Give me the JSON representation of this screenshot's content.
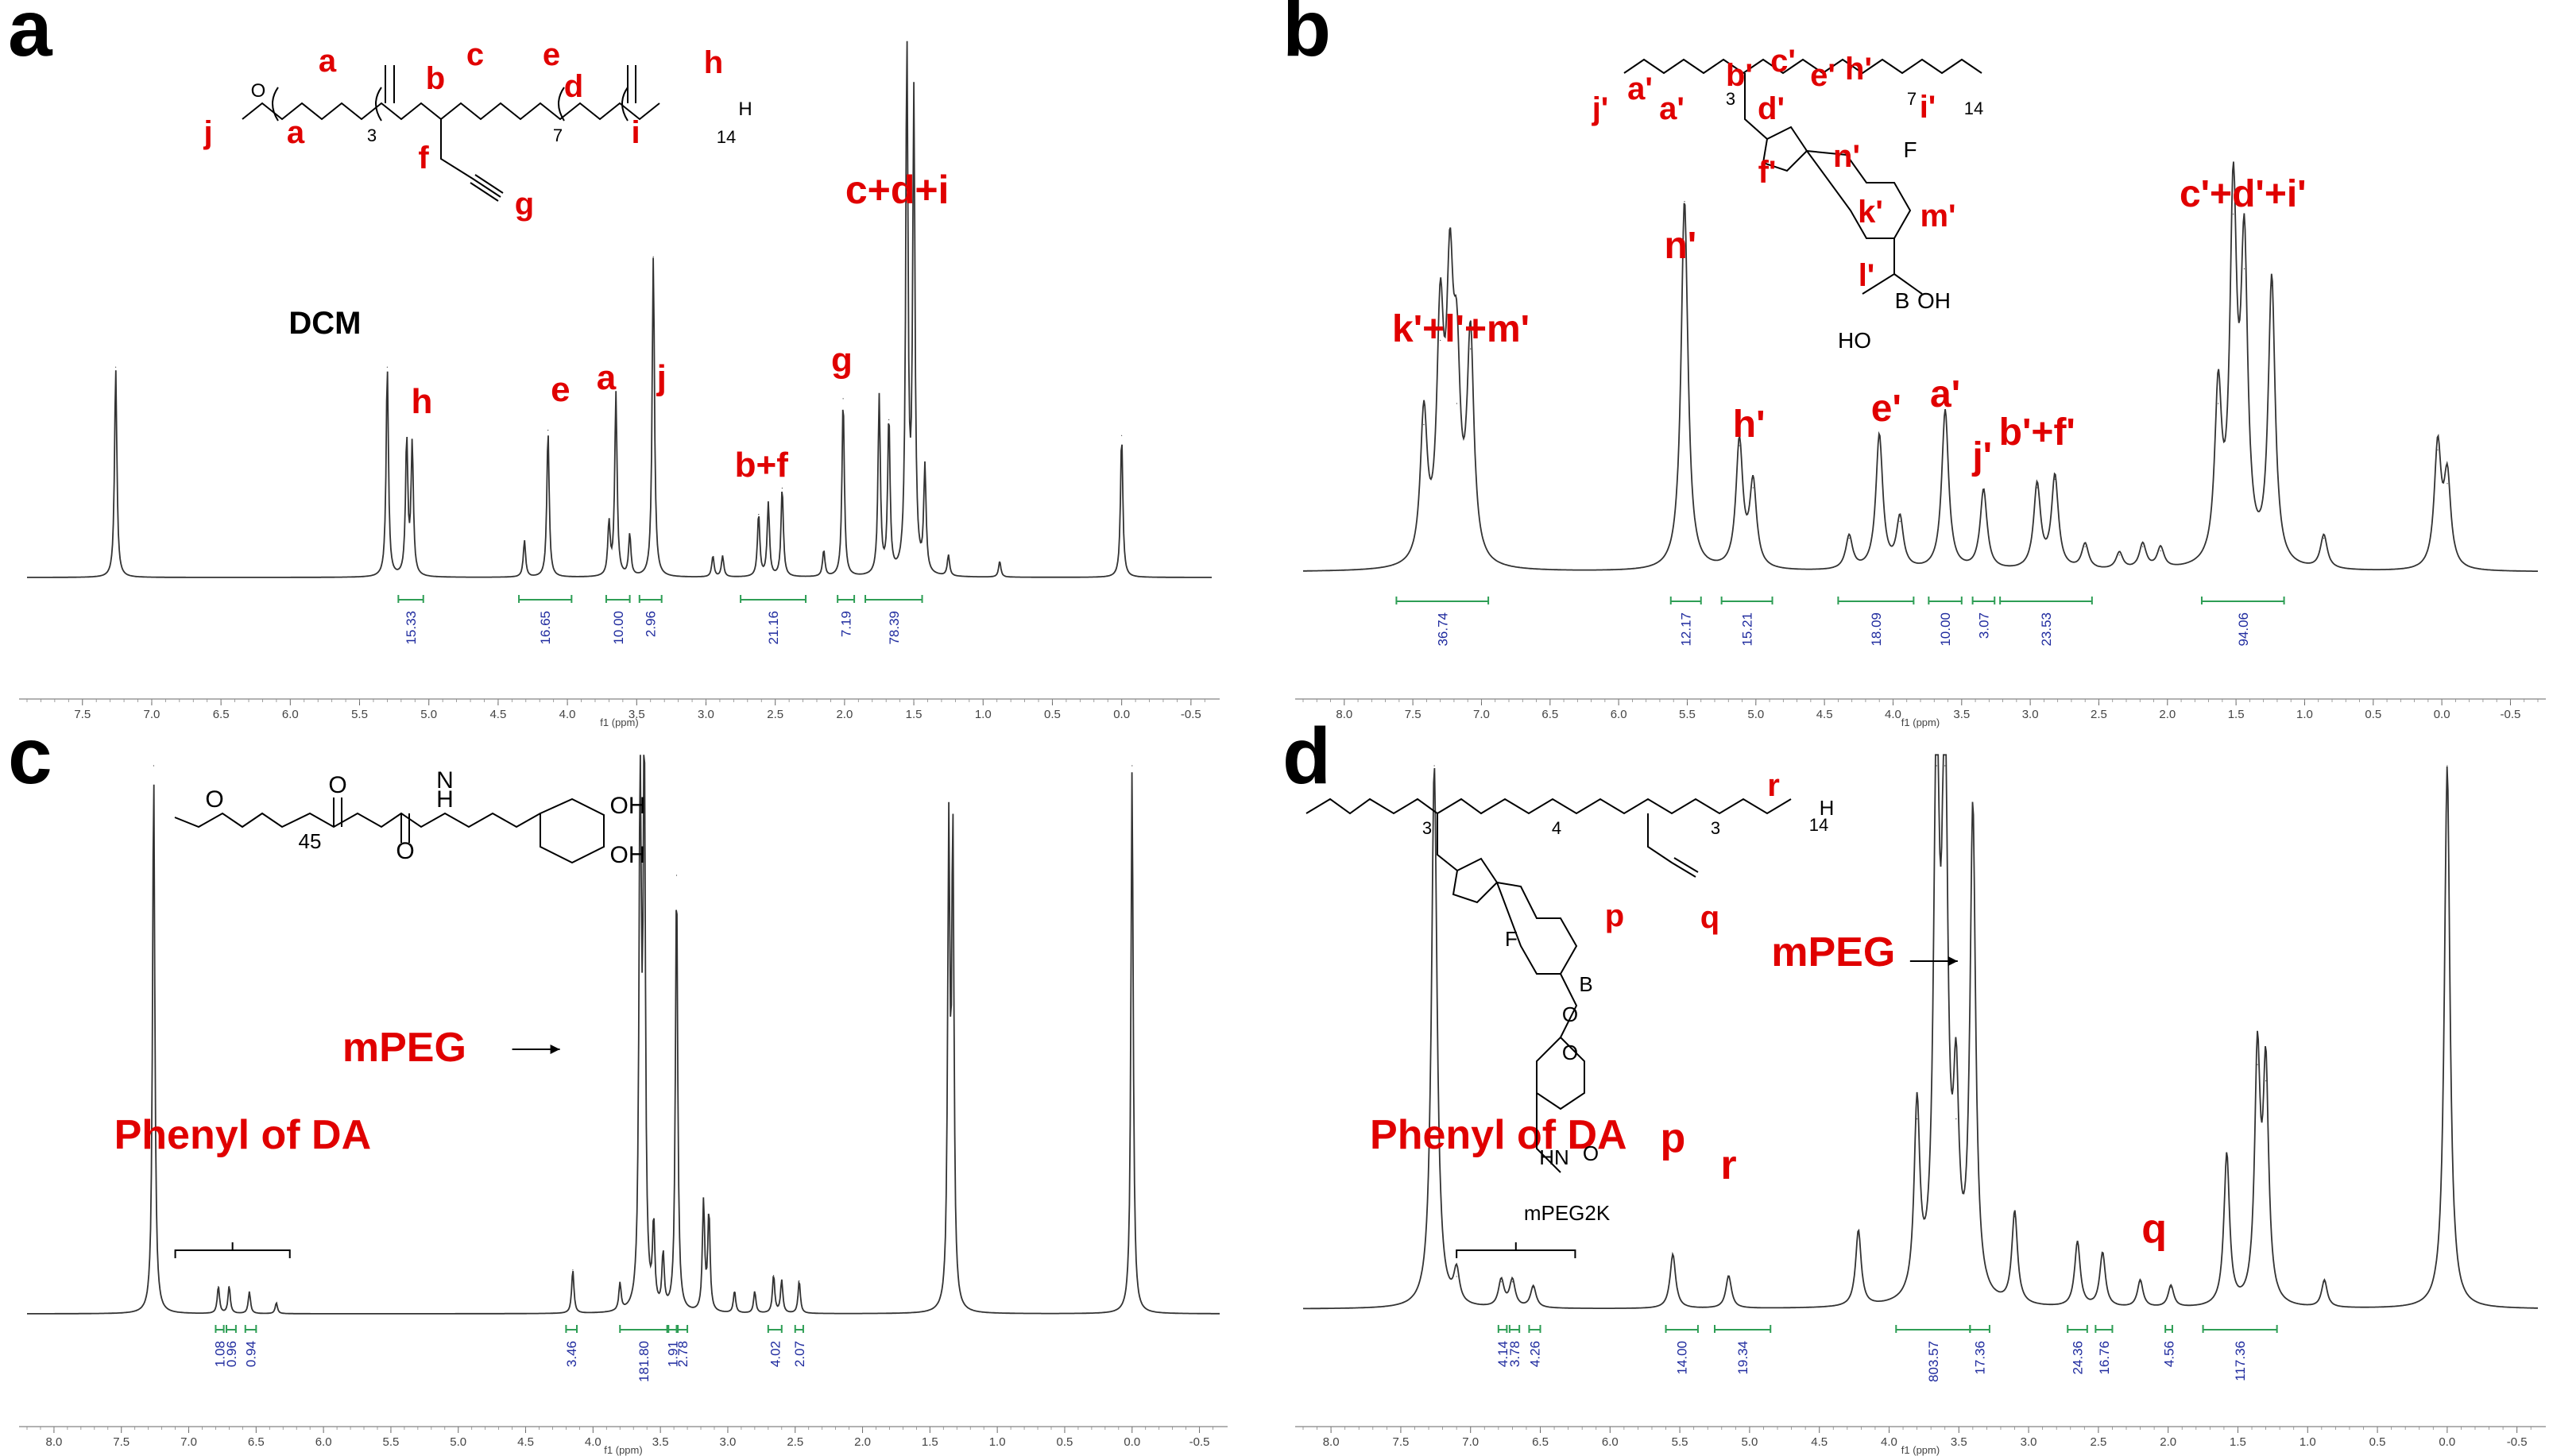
{
  "figure": {
    "panels": [
      {
        "letter": "a",
        "x_axis_label": "f1 (ppm)",
        "x_range": [
          7.9,
          -0.65
        ],
        "x_ticks": [
          "7.5",
          "7.0",
          "6.5",
          "6.0",
          "5.5",
          "5.0",
          "4.5",
          "4.0",
          "3.5",
          "3.0",
          "2.5",
          "2.0",
          "1.5",
          "1.0",
          "0.5",
          "0.0",
          "-0.5"
        ],
        "peak_labels": [
          {
            "text": "DCM",
            "color": "#000000"
          },
          {
            "text": "h",
            "color": "#e00000"
          },
          {
            "text": "e",
            "color": "#e00000"
          },
          {
            "text": "a",
            "color": "#e00000"
          },
          {
            "text": "j",
            "color": "#e00000"
          },
          {
            "text": "b+f",
            "color": "#e00000"
          },
          {
            "text": "g",
            "color": "#e00000"
          },
          {
            "text": "c+d+i",
            "color": "#e00000"
          }
        ],
        "structure_labels": [
          "j",
          "a",
          "a",
          "b",
          "c",
          "d",
          "e",
          "f",
          "g",
          "h",
          "i"
        ],
        "structure_subscripts": [
          "3",
          "7",
          "14"
        ],
        "integrals": [
          {
            "value": "15.33",
            "from": 5.22,
            "to": 5.04
          },
          {
            "value": "16.65",
            "from": 4.35,
            "to": 3.97
          },
          {
            "value": "10.00",
            "from": 3.72,
            "to": 3.55
          },
          {
            "value": "2.96",
            "from": 3.48,
            "to": 3.32
          },
          {
            "value": "21.16",
            "from": 2.75,
            "to": 2.28
          },
          {
            "value": "7.19",
            "from": 2.05,
            "to": 1.93
          },
          {
            "value": "78.39",
            "from": 1.85,
            "to": 1.44
          }
        ]
      },
      {
        "letter": "b",
        "x_axis_label": "f1 (ppm)",
        "x_range": [
          8.3,
          -0.7
        ],
        "x_ticks": [
          "8.0",
          "7.5",
          "7.0",
          "6.5",
          "6.0",
          "5.5",
          "5.0",
          "4.5",
          "4.0",
          "3.5",
          "3.0",
          "2.5",
          "2.0",
          "1.5",
          "1.0",
          "0.5",
          "0.0",
          "-0.5"
        ],
        "peak_labels": [
          {
            "text": "k'+l'+m'",
            "color": "#e00000"
          },
          {
            "text": "n'",
            "color": "#e00000"
          },
          {
            "text": "h'",
            "color": "#e00000"
          },
          {
            "text": "e'",
            "color": "#e00000"
          },
          {
            "text": "a'",
            "color": "#e00000"
          },
          {
            "text": "j'",
            "color": "#e00000"
          },
          {
            "text": "b'+f'",
            "color": "#e00000"
          },
          {
            "text": "c'+d'+i'",
            "color": "#e00000"
          }
        ],
        "structure_labels": [
          "j'",
          "a'",
          "a'",
          "b'",
          "c'",
          "d'",
          "e'",
          "f'",
          "h'",
          "i'",
          "n'",
          "k'",
          "l'",
          "m'"
        ],
        "structure_subscripts": [
          "3",
          "7",
          "14"
        ],
        "structure_atoms": [
          "F",
          "B",
          "OH",
          "HO"
        ],
        "integrals": [
          {
            "value": "36.74",
            "from": 7.62,
            "to": 6.95
          },
          {
            "value": "12.17",
            "from": 5.62,
            "to": 5.4
          },
          {
            "value": "15.21",
            "from": 5.25,
            "to": 4.88
          },
          {
            "value": "18.09",
            "from": 4.4,
            "to": 3.85
          },
          {
            "value": "10.00",
            "from": 3.74,
            "to": 3.5
          },
          {
            "value": "3.07",
            "from": 3.42,
            "to": 3.26
          },
          {
            "value": "23.53",
            "from": 3.22,
            "to": 2.55
          },
          {
            "value": "94.06",
            "from": 1.75,
            "to": 1.15
          }
        ]
      },
      {
        "letter": "c",
        "x_axis_label": "f1 (ppm)",
        "x_range": [
          8.2,
          -0.65
        ],
        "x_ticks": [
          "8.0",
          "7.5",
          "7.0",
          "6.5",
          "6.0",
          "5.5",
          "5.0",
          "4.5",
          "4.0",
          "3.5",
          "3.0",
          "2.5",
          "2.0",
          "1.5",
          "1.0",
          "0.5",
          "0.0",
          "-0.5"
        ],
        "peak_labels": [
          {
            "text": "mPEG",
            "color": "#e00000"
          },
          {
            "text": "Phenyl of DA",
            "color": "#e00000"
          }
        ],
        "arrow_glyph": "→",
        "structure_subscripts": [
          "45"
        ],
        "structure_atoms": [
          "O",
          "O",
          "H",
          "N",
          "O",
          "OH",
          "OH"
        ],
        "integrals": [
          {
            "value": "1.08",
            "from": 6.8,
            "to": 6.74
          },
          {
            "value": "0.96",
            "from": 6.72,
            "to": 6.65
          },
          {
            "value": "0.94",
            "from": 6.58,
            "to": 6.5
          },
          {
            "value": "3.46",
            "from": 4.2,
            "to": 4.12
          },
          {
            "value": "181.80",
            "from": 3.8,
            "to": 3.45
          },
          {
            "value": "1.91",
            "from": 3.44,
            "to": 3.38
          },
          {
            "value": "2.78",
            "from": 3.37,
            "to": 3.3
          },
          {
            "value": "4.02",
            "from": 2.7,
            "to": 2.6
          },
          {
            "value": "2.07",
            "from": 2.5,
            "to": 2.44
          }
        ]
      },
      {
        "letter": "d",
        "x_axis_label": "f1 (ppm)",
        "x_range": [
          8.2,
          -0.65
        ],
        "x_ticks": [
          "8.0",
          "7.5",
          "7.0",
          "6.5",
          "6.0",
          "5.5",
          "5.0",
          "4.5",
          "4.0",
          "3.5",
          "3.0",
          "2.5",
          "2.0",
          "1.5",
          "1.0",
          "0.5",
          "0.0",
          "-0.5"
        ],
        "peak_labels": [
          {
            "text": "mPEG",
            "color": "#e00000"
          },
          {
            "text": "Phenyl of DA",
            "color": "#e00000"
          },
          {
            "text": "p",
            "color": "#e00000"
          },
          {
            "text": "r",
            "color": "#e00000"
          },
          {
            "text": "q",
            "color": "#e00000"
          }
        ],
        "arrow_glyph": "→",
        "structure_labels": [
          "p",
          "q",
          "r"
        ],
        "structure_subscripts": [
          "3",
          "4",
          "3",
          "14"
        ],
        "structure_atoms": [
          "F",
          "B",
          "O",
          "O",
          "HN",
          "O",
          "H",
          "mPEG2K"
        ],
        "integrals": [
          {
            "value": "4.14",
            "from": 6.8,
            "to": 6.74
          },
          {
            "value": "3.78",
            "from": 6.72,
            "to": 6.65
          },
          {
            "value": "4.26",
            "from": 6.58,
            "to": 6.5
          },
          {
            "value": "14.00",
            "from": 5.6,
            "to": 5.37
          },
          {
            "value": "19.34",
            "from": 5.25,
            "to": 4.85
          },
          {
            "value": "803.57",
            "from": 3.95,
            "to": 3.42
          },
          {
            "value": "17.36",
            "from": 3.42,
            "to": 3.28
          },
          {
            "value": "24.36",
            "from": 2.72,
            "to": 2.58
          },
          {
            "value": "16.76",
            "from": 2.52,
            "to": 2.4
          },
          {
            "value": "4.56",
            "from": 2.02,
            "to": 1.97
          },
          {
            "value": "117.36",
            "from": 1.75,
            "to": 1.22
          }
        ]
      }
    ]
  },
  "chart_data": [
    {
      "type": "line",
      "title": "",
      "xlabel": "f1 (ppm)",
      "x_reversed": true,
      "xlim": [
        7.9,
        -0.65
      ],
      "peaks": [
        {
          "ppm": 7.26,
          "h": 0.4
        },
        {
          "ppm": 5.3,
          "h": 0.4
        },
        {
          "ppm": 5.16,
          "h": 0.26
        },
        {
          "ppm": 5.12,
          "h": 0.25
        },
        {
          "ppm": 4.31,
          "h": 0.07
        },
        {
          "ppm": 4.14,
          "h": 0.28
        },
        {
          "ppm": 3.7,
          "h": 0.1
        },
        {
          "ppm": 3.65,
          "h": 0.35
        },
        {
          "ppm": 3.55,
          "h": 0.08
        },
        {
          "ppm": 3.38,
          "h": 0.61
        },
        {
          "ppm": 2.95,
          "h": 0.04
        },
        {
          "ppm": 2.88,
          "h": 0.04
        },
        {
          "ppm": 2.62,
          "h": 0.12
        },
        {
          "ppm": 2.55,
          "h": 0.14
        },
        {
          "ppm": 2.45,
          "h": 0.17
        },
        {
          "ppm": 2.15,
          "h": 0.05
        },
        {
          "ppm": 2.01,
          "h": 0.34
        },
        {
          "ppm": 1.75,
          "h": 0.34
        },
        {
          "ppm": 1.68,
          "h": 0.3
        },
        {
          "ppm": 1.55,
          "h": 1.0
        },
        {
          "ppm": 1.5,
          "h": 0.9
        },
        {
          "ppm": 1.42,
          "h": 0.2
        },
        {
          "ppm": 1.25,
          "h": 0.04
        },
        {
          "ppm": 0.88,
          "h": 0.03
        },
        {
          "ppm": 0.0,
          "h": 0.27
        }
      ],
      "integrals": [
        15.33,
        16.65,
        10.0,
        2.96,
        21.16,
        7.19,
        78.39
      ]
    },
    {
      "type": "line",
      "title": "",
      "xlabel": "f1 (ppm)",
      "x_reversed": true,
      "xlim": [
        8.3,
        -0.7
      ],
      "peaks": [
        {
          "ppm": 7.42,
          "h": 0.35
        },
        {
          "ppm": 7.3,
          "h": 0.55
        },
        {
          "ppm": 7.23,
          "h": 0.6
        },
        {
          "ppm": 7.18,
          "h": 0.4
        },
        {
          "ppm": 7.08,
          "h": 0.53
        },
        {
          "ppm": 5.52,
          "h": 0.88
        },
        {
          "ppm": 5.12,
          "h": 0.3
        },
        {
          "ppm": 5.02,
          "h": 0.2
        },
        {
          "ppm": 4.32,
          "h": 0.08
        },
        {
          "ppm": 4.1,
          "h": 0.32
        },
        {
          "ppm": 3.95,
          "h": 0.12
        },
        {
          "ppm": 3.62,
          "h": 0.38
        },
        {
          "ppm": 3.34,
          "h": 0.19
        },
        {
          "ppm": 2.95,
          "h": 0.2
        },
        {
          "ppm": 2.82,
          "h": 0.22
        },
        {
          "ppm": 2.6,
          "h": 0.06
        },
        {
          "ppm": 2.35,
          "h": 0.04
        },
        {
          "ppm": 2.18,
          "h": 0.06
        },
        {
          "ppm": 2.05,
          "h": 0.05
        },
        {
          "ppm": 1.63,
          "h": 0.4
        },
        {
          "ppm": 1.52,
          "h": 0.85
        },
        {
          "ppm": 1.44,
          "h": 0.72
        },
        {
          "ppm": 1.24,
          "h": 0.68
        },
        {
          "ppm": 0.86,
          "h": 0.08
        },
        {
          "ppm": 0.03,
          "h": 0.29
        },
        {
          "ppm": -0.04,
          "h": 0.21
        }
      ],
      "integrals": [
        36.74,
        12.17,
        15.21,
        18.09,
        10.0,
        3.07,
        23.53,
        94.06
      ]
    },
    {
      "type": "line",
      "title": "",
      "xlabel": "f1 (ppm)",
      "x_reversed": true,
      "xlim": [
        8.2,
        -0.65
      ],
      "peaks": [
        {
          "ppm": 7.26,
          "h": 1.0
        },
        {
          "ppm": 6.78,
          "h": 0.05
        },
        {
          "ppm": 6.7,
          "h": 0.05
        },
        {
          "ppm": 6.55,
          "h": 0.04
        },
        {
          "ppm": 6.35,
          "h": 0.02
        },
        {
          "ppm": 4.15,
          "h": 0.08
        },
        {
          "ppm": 3.8,
          "h": 0.05
        },
        {
          "ppm": 3.65,
          "h": 1.0
        },
        {
          "ppm": 3.62,
          "h": 1.0
        },
        {
          "ppm": 3.55,
          "h": 0.15
        },
        {
          "ppm": 3.48,
          "h": 0.1
        },
        {
          "ppm": 3.38,
          "h": 0.8
        },
        {
          "ppm": 3.18,
          "h": 0.2
        },
        {
          "ppm": 3.14,
          "h": 0.18
        },
        {
          "ppm": 2.95,
          "h": 0.04
        },
        {
          "ppm": 2.8,
          "h": 0.04
        },
        {
          "ppm": 2.66,
          "h": 0.07
        },
        {
          "ppm": 2.6,
          "h": 0.06
        },
        {
          "ppm": 2.47,
          "h": 0.06
        },
        {
          "ppm": 1.36,
          "h": 0.85
        },
        {
          "ppm": 1.33,
          "h": 0.85
        },
        {
          "ppm": 0.0,
          "h": 1.0
        }
      ],
      "integrals": [
        1.08,
        0.96,
        0.94,
        3.46,
        181.8,
        1.91,
        2.78,
        4.02,
        2.07
      ]
    },
    {
      "type": "line",
      "title": "",
      "xlabel": "f1 (ppm)",
      "x_reversed": true,
      "xlim": [
        8.2,
        -0.65
      ],
      "peaks": [
        {
          "ppm": 7.26,
          "h": 1.0
        },
        {
          "ppm": 7.1,
          "h": 0.06
        },
        {
          "ppm": 6.78,
          "h": 0.05
        },
        {
          "ppm": 6.7,
          "h": 0.05
        },
        {
          "ppm": 6.55,
          "h": 0.04
        },
        {
          "ppm": 5.55,
          "h": 0.1
        },
        {
          "ppm": 5.15,
          "h": 0.06
        },
        {
          "ppm": 4.22,
          "h": 0.14
        },
        {
          "ppm": 3.8,
          "h": 0.35
        },
        {
          "ppm": 3.66,
          "h": 1.0
        },
        {
          "ppm": 3.6,
          "h": 1.0
        },
        {
          "ppm": 3.52,
          "h": 0.35
        },
        {
          "ppm": 3.4,
          "h": 0.9
        },
        {
          "ppm": 3.1,
          "h": 0.17
        },
        {
          "ppm": 2.65,
          "h": 0.12
        },
        {
          "ppm": 2.47,
          "h": 0.1
        },
        {
          "ppm": 2.2,
          "h": 0.05
        },
        {
          "ppm": 1.98,
          "h": 0.04
        },
        {
          "ppm": 1.58,
          "h": 0.28
        },
        {
          "ppm": 1.36,
          "h": 0.45
        },
        {
          "ppm": 1.3,
          "h": 0.42
        },
        {
          "ppm": 0.88,
          "h": 0.05
        },
        {
          "ppm": 0.0,
          "h": 1.0
        }
      ],
      "integrals": [
        4.14,
        3.78,
        4.26,
        14.0,
        19.34,
        803.57,
        17.36,
        24.36,
        16.76,
        4.56,
        117.36
      ]
    }
  ]
}
